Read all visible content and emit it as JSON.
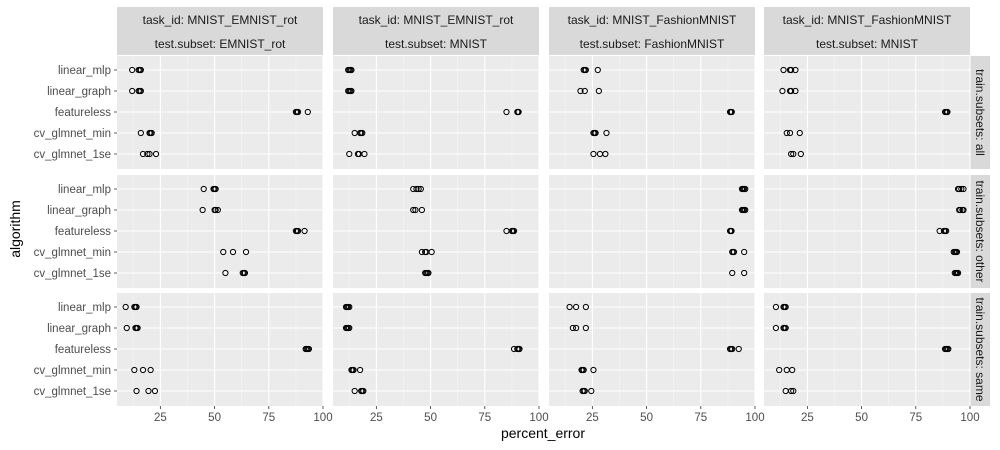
{
  "colors": {
    "panel_bg": "#ebebeb",
    "grid_major": "#ffffff",
    "grid_minor": "#f5f5f5",
    "strip_bg": "#d9d9d9",
    "point_stroke": "#000000",
    "tick_label": "#4d4d4d"
  },
  "chart_data": {
    "type": "scatter",
    "facets": "grid",
    "xlabel": "percent_error",
    "ylabel": "algorithm",
    "xlim": [
      5,
      100
    ],
    "x_ticks": [
      25,
      50,
      75,
      100
    ],
    "x_tick_labels": [
      "25",
      "50",
      "75",
      "100"
    ],
    "categories": [
      "linear_mlp",
      "linear_graph",
      "featureless",
      "cv_glmnet_min",
      "cv_glmnet_1se"
    ],
    "grid": true,
    "point_shape": "open-circle",
    "columns": [
      {
        "strip_top": "task_id: MNIST_EMNIST_rot",
        "strip_bottom": "test.subset: EMNIST_rot"
      },
      {
        "strip_top": "task_id: MNIST_EMNIST_rot",
        "strip_bottom": "test.subset: MNIST"
      },
      {
        "strip_top": "task_id: MNIST_FashionMNIST",
        "strip_bottom": "test.subset: FashionMNIST"
      },
      {
        "strip_top": "task_id: MNIST_FashionMNIST",
        "strip_bottom": "test.subset: MNIST"
      }
    ],
    "rows": [
      {
        "strip": "train.subsets: all"
      },
      {
        "strip": "train.subsets: other"
      },
      {
        "strip": "train.subsets: same"
      }
    ],
    "panels": [
      [
        {
          "linear_mlp": [
            12,
            15,
            15.5,
            16
          ],
          "linear_graph": [
            12,
            15,
            15.5,
            16
          ],
          "featureless": [
            87.5,
            88,
            88.5,
            93
          ],
          "cv_glmnet_min": [
            16,
            20,
            20.5,
            21
          ],
          "cv_glmnet_1se": [
            17,
            19,
            20,
            23
          ]
        },
        {
          "linear_mlp": [
            12,
            12.5,
            13,
            13.5
          ],
          "linear_graph": [
            12,
            12.5,
            13,
            13.5
          ],
          "featureless": [
            85,
            90,
            90.3,
            90.6
          ],
          "cv_glmnet_min": [
            15,
            17.5,
            18,
            18.5
          ],
          "cv_glmnet_1se": [
            12.5,
            16.5,
            17,
            19.5
          ]
        },
        {
          "linear_mlp": [
            21,
            21.5,
            22,
            27.5
          ],
          "linear_graph": [
            19.5,
            21.5,
            28
          ],
          "featureless": [
            88.5,
            88.8,
            89,
            89.3
          ],
          "cv_glmnet_min": [
            25.5,
            26,
            26.5,
            31.5
          ],
          "cv_glmnet_1se": [
            25.5,
            28.5,
            31
          ]
        },
        {
          "linear_mlp": [
            14,
            17,
            17.5,
            19.5
          ],
          "linear_graph": [
            13.5,
            17,
            17.5,
            19.5
          ],
          "featureless": [
            88.5,
            89,
            89.3,
            89.6
          ],
          "cv_glmnet_min": [
            15.5,
            17,
            21.5
          ],
          "cv_glmnet_1se": [
            17.5,
            18.5,
            22
          ]
        }
      ],
      [
        {
          "linear_mlp": [
            45,
            49.5,
            50,
            50.5
          ],
          "linear_graph": [
            44.5,
            50,
            50.5,
            51.5
          ],
          "featureless": [
            87.5,
            88,
            88.5,
            91.5
          ],
          "cv_glmnet_min": [
            54,
            58.5,
            64.5
          ],
          "cv_glmnet_1se": [
            55,
            63,
            63.5,
            64
          ]
        },
        {
          "linear_mlp": [
            42,
            43.5,
            44.5,
            45.5
          ],
          "linear_graph": [
            42,
            43,
            46
          ],
          "featureless": [
            85,
            87.5,
            88,
            88.5
          ],
          "cv_glmnet_min": [
            46,
            47.5,
            48,
            50.5
          ],
          "cv_glmnet_1se": [
            47.5,
            48,
            48.5,
            49
          ]
        },
        {
          "linear_mlp": [
            94,
            94.5,
            95,
            95.5
          ],
          "linear_graph": [
            94,
            94.5,
            95,
            95.5
          ],
          "featureless": [
            88.5,
            88.8,
            89,
            89.2
          ],
          "cv_glmnet_min": [
            89.5,
            90,
            90.3,
            95
          ],
          "cv_glmnet_1se": [
            89.5,
            95
          ]
        },
        {
          "linear_mlp": [
            94.5,
            95,
            96,
            97
          ],
          "linear_graph": [
            95,
            95.5,
            96.5,
            97
          ],
          "featureless": [
            86,
            88,
            88.5,
            89
          ],
          "cv_glmnet_min": [
            92.5,
            93,
            93.5,
            94
          ],
          "cv_glmnet_1se": [
            93,
            93.5,
            94,
            94.5
          ]
        }
      ],
      [
        {
          "linear_mlp": [
            9,
            13,
            13.5,
            14
          ],
          "linear_graph": [
            9.5,
            13.5,
            14,
            14.5
          ],
          "featureless": [
            92,
            92.5,
            93,
            93.5
          ],
          "cv_glmnet_min": [
            13,
            17,
            20.5
          ],
          "cv_glmnet_1se": [
            14,
            19.5,
            22.5
          ]
        },
        {
          "linear_mlp": [
            11,
            11.5,
            12,
            12.5
          ],
          "linear_graph": [
            11,
            11.5,
            12,
            12.5
          ],
          "featureless": [
            88.5,
            90,
            90.5,
            91
          ],
          "cv_glmnet_min": [
            13.5,
            14,
            14.5,
            17.5
          ],
          "cv_glmnet_1se": [
            15,
            18,
            18.5,
            19
          ]
        },
        {
          "linear_mlp": [
            14.5,
            17.5,
            22
          ],
          "linear_graph": [
            16,
            17.5,
            22
          ],
          "featureless": [
            88.5,
            89,
            89.5,
            92.5
          ],
          "cv_glmnet_min": [
            20,
            20.5,
            21,
            25.5
          ],
          "cv_glmnet_1se": [
            20.5,
            21,
            21.5,
            24.5
          ]
        },
        {
          "linear_mlp": [
            10.5,
            14,
            14.5,
            15
          ],
          "linear_graph": [
            10.5,
            14,
            14.5,
            15
          ],
          "featureless": [
            88.5,
            89,
            89.5,
            90
          ],
          "cv_glmnet_min": [
            12,
            15.5,
            18
          ],
          "cv_glmnet_1se": [
            15,
            17.5,
            18.5
          ]
        }
      ]
    ]
  }
}
